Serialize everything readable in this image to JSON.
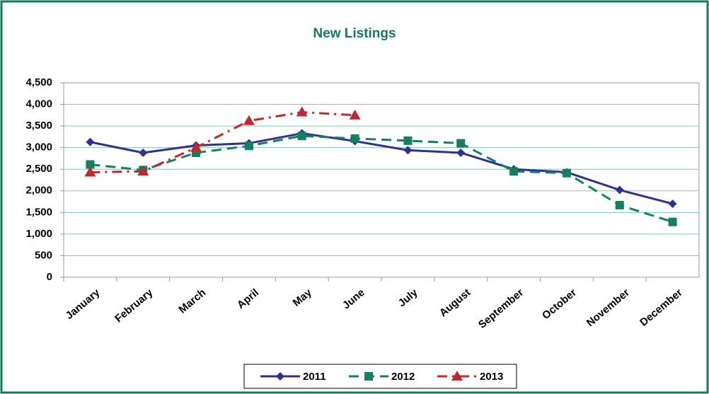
{
  "chart_data": {
    "type": "line",
    "title": "New Listings",
    "categories": [
      "January",
      "February",
      "March",
      "April",
      "May",
      "June",
      "July",
      "August",
      "September",
      "October",
      "November",
      "December"
    ],
    "series": [
      {
        "name": "2011",
        "color": "#2e3192",
        "marker": "diamond",
        "dash": "solid",
        "values": [
          3130,
          2880,
          3050,
          3100,
          3330,
          3150,
          2940,
          2880,
          2500,
          2430,
          2020,
          1700
        ]
      },
      {
        "name": "2012",
        "color": "#138060",
        "marker": "square",
        "dash": "dashed",
        "values": [
          2610,
          2480,
          2880,
          3040,
          3270,
          3210,
          3160,
          3100,
          2450,
          2410,
          1670,
          1280
        ]
      },
      {
        "name": "2013",
        "color": "#c1272d",
        "marker": "triangle",
        "dash": "dashdot",
        "values": [
          2430,
          2450,
          3000,
          3620,
          3820,
          3750,
          null,
          null,
          null,
          null,
          null,
          null
        ]
      }
    ],
    "ylim": [
      0,
      4500
    ],
    "yticks": [
      0,
      500,
      {
        "value": 1000,
        "label": "1,000"
      },
      {
        "value": 1500,
        "label": "1,500"
      },
      {
        "value": 2000,
        "label": "2,000"
      },
      {
        "value": 2500,
        "label": "2,500"
      },
      {
        "value": 3000,
        "label": "3,000"
      },
      {
        "value": 3500,
        "label": "3,500"
      },
      {
        "value": 4000,
        "label": "4,000"
      },
      {
        "value": 4500,
        "label": "4,500"
      }
    ],
    "grid": true,
    "legend": "bottom"
  }
}
